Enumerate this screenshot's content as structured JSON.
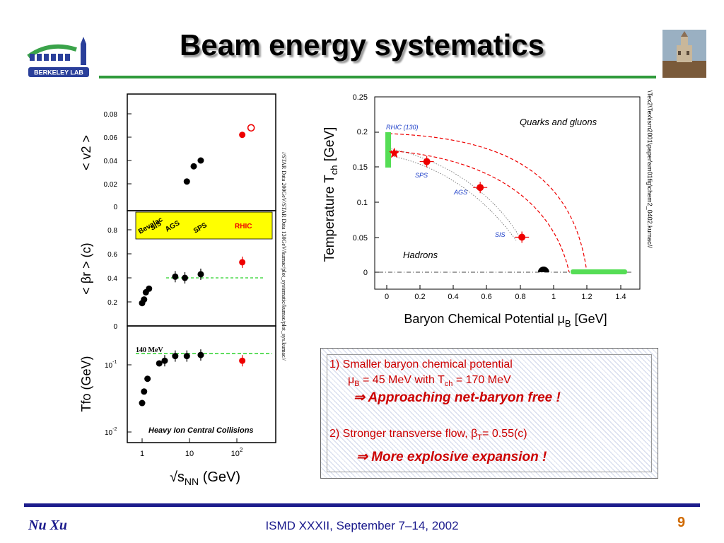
{
  "slide": {
    "title": "Beam energy systematics",
    "logo_text": "BERKELEY LAB",
    "author": "Nu Xu",
    "conference": "ISMD XXXII, September 7–14, 2002",
    "page_number": "9",
    "side_path_left": "//STAR Data 200GeV/STAR Data 130GeV/kumac/plot_systematic/kumac/plot_sys.kumac//",
    "side_path_right": "\\Tex2\\Tex\\ism2001\\paper\\sm01fig\\chem2_0402.kumac//",
    "colors": {
      "accent_line": "#2e9a3a",
      "footer_line": "#1d1d8c",
      "data_red": "#ee0000",
      "text_red": "#cc0000"
    }
  },
  "notes": {
    "item1_line1": "1) Smaller baryon chemical potential",
    "item1_mu": "μ",
    "item1_mu_sub": "B",
    "item1_mid": " = 45 MeV with  T",
    "item1_t_sub": "ch",
    "item1_end": " = 170 MeV",
    "item1_conclusion": "⇒ Approaching net-baryon free !",
    "item2_line1": "2) Stronger transverse flow, β",
    "item2_sub": "T",
    "item2_end": "= 0.55(c)",
    "item2_conclusion": "⇒ More explosive expansion !"
  },
  "chart_data": [
    {
      "type": "scatter",
      "title": "",
      "ylabel": "< v2 >",
      "xscale": "log",
      "ylim": [
        0,
        0.09
      ],
      "yticks": [
        "0",
        "0.02",
        "0.04",
        "0.06",
        "0.08"
      ],
      "points": [
        {
          "x": 8.8,
          "y": 0.022,
          "style": "black-filled"
        },
        {
          "x": 12.3,
          "y": 0.035,
          "style": "black-filled"
        },
        {
          "x": 17.3,
          "y": 0.04,
          "style": "black-filled"
        },
        {
          "x": 130,
          "y": 0.062,
          "style": "red-filled"
        },
        {
          "x": 200,
          "y": 0.068,
          "style": "red-open"
        }
      ]
    },
    {
      "type": "scatter",
      "ylabel": "< βr > (c)",
      "xscale": "log",
      "ylim": [
        0,
        0.9
      ],
      "yticks": [
        "0",
        "0.2",
        "0.4",
        "0.6",
        "0.8"
      ],
      "band_labels": [
        "Bevalac",
        "SIS",
        "AGS",
        "SPS",
        "RHIC"
      ],
      "band_color": "#ffff00",
      "reference_line": 0.4,
      "points": [
        {
          "x": 1.0,
          "y": 0.19,
          "style": "black-filled"
        },
        {
          "x": 1.1,
          "y": 0.22,
          "style": "black-filled"
        },
        {
          "x": 1.2,
          "y": 0.28,
          "style": "black-filled"
        },
        {
          "x": 1.4,
          "y": 0.31,
          "style": "black-filled"
        },
        {
          "x": 5.0,
          "y": 0.41,
          "style": "black-filled"
        },
        {
          "x": 8.0,
          "y": 0.4,
          "style": "black-filled"
        },
        {
          "x": 17.3,
          "y": 0.43,
          "style": "black-filled"
        },
        {
          "x": 130,
          "y": 0.53,
          "style": "red-filled"
        }
      ]
    },
    {
      "type": "scatter",
      "ylabel": "Tfo (GeV)",
      "xlabel": "√sNN (GeV)",
      "xscale": "log",
      "yscale": "log",
      "yticks": [
        "10^-2",
        "10^-1"
      ],
      "xticks": [
        "1",
        "10",
        "10^2"
      ],
      "annotation": "140 MeV",
      "caption": "Heavy Ion Central Collisions",
      "reference_line": 0.14,
      "points": [
        {
          "x": 1.0,
          "y": 0.027,
          "style": "black-filled"
        },
        {
          "x": 1.1,
          "y": 0.04,
          "style": "black-filled"
        },
        {
          "x": 1.3,
          "y": 0.062,
          "style": "black-filled"
        },
        {
          "x": 2.3,
          "y": 0.105,
          "style": "black-filled"
        },
        {
          "x": 3.0,
          "y": 0.115,
          "style": "black-filled"
        },
        {
          "x": 5.0,
          "y": 0.135,
          "style": "black-filled"
        },
        {
          "x": 8.8,
          "y": 0.135,
          "style": "black-filled"
        },
        {
          "x": 17.3,
          "y": 0.14,
          "style": "black-filled"
        },
        {
          "x": 130,
          "y": 0.115,
          "style": "red-filled"
        }
      ]
    },
    {
      "type": "scatter",
      "xlabel": "Baryon Chemical Potential μB [GeV]",
      "ylabel": "Temperature Tch [GeV]",
      "xlim": [
        -0.05,
        1.5
      ],
      "ylim": [
        -0.01,
        0.25
      ],
      "xticks": [
        "0",
        "0.2",
        "0.4",
        "0.6",
        "0.8",
        "1",
        "1.2",
        "1.4"
      ],
      "yticks": [
        "0",
        "0.05",
        "0.1",
        "0.15",
        "0.2",
        "0.25"
      ],
      "region_labels": [
        "Quarks and gluons",
        "Hadrons"
      ],
      "points": [
        {
          "label": "RHIC (130)",
          "x": 0.045,
          "y": 0.17,
          "style": "red-star"
        },
        {
          "label": "SPS",
          "x": 0.24,
          "y": 0.158,
          "style": "red-filled"
        },
        {
          "label": "AGS",
          "x": 0.56,
          "y": 0.121,
          "style": "red-filled"
        },
        {
          "label": "SIS",
          "x": 0.81,
          "y": 0.05,
          "style": "red-filled"
        },
        {
          "label": "",
          "x": 0.94,
          "y": 0.0,
          "style": "black-half-disc"
        }
      ],
      "bands": [
        {
          "x": [
            0.0,
            0.0
          ],
          "y": [
            0.15,
            0.2
          ],
          "color": "#55dd55"
        },
        {
          "x": [
            1.1,
            1.45
          ],
          "y": [
            0.0,
            0.0
          ],
          "color": "#55dd55"
        }
      ]
    }
  ]
}
